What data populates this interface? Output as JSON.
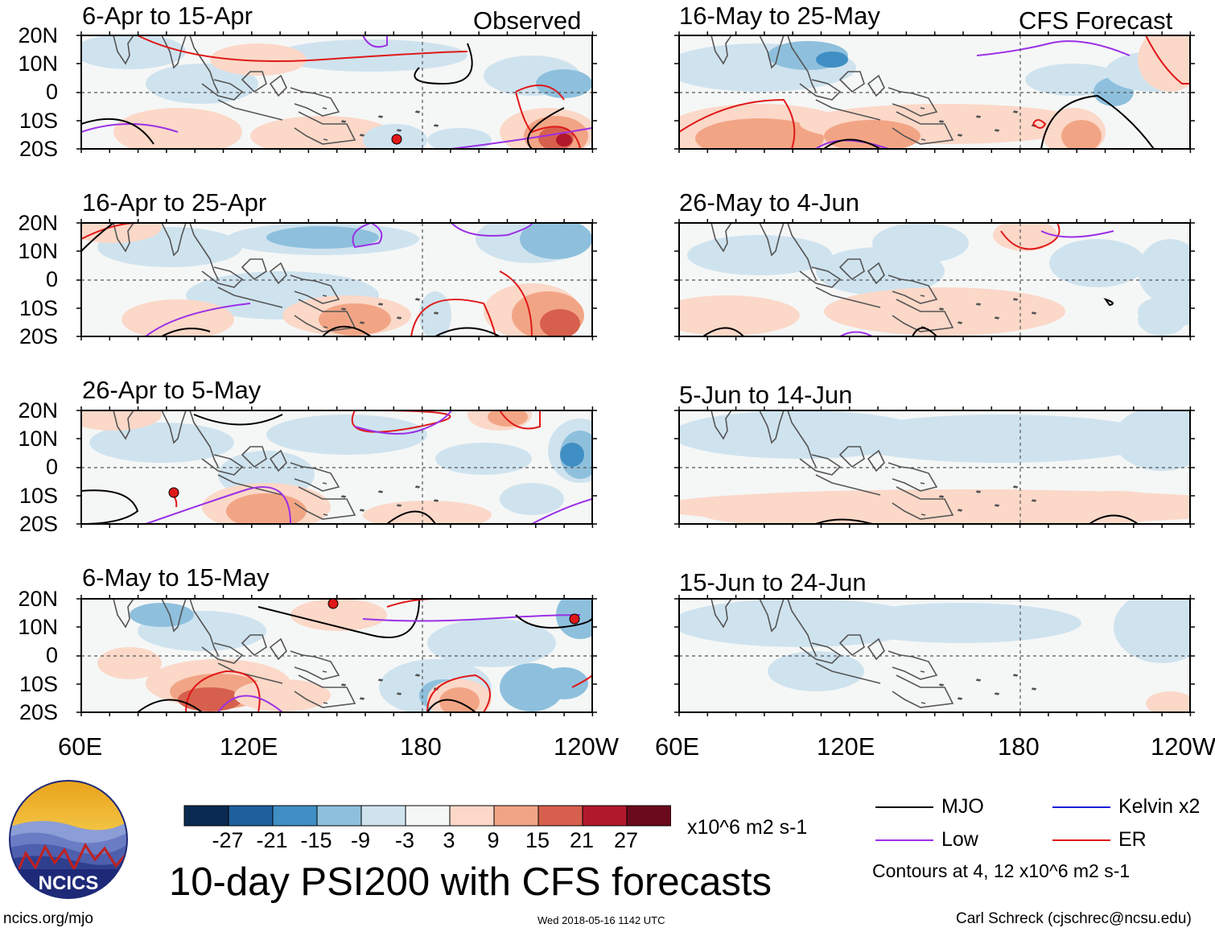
{
  "panels": {
    "observed": [
      {
        "title": "6-Apr to 15-Apr"
      },
      {
        "title": "16-Apr to 25-Apr"
      },
      {
        "title": "26-Apr to 5-May"
      },
      {
        "title": "6-May to 15-May"
      }
    ],
    "forecast": [
      {
        "title": "16-May to 25-May"
      },
      {
        "title": "26-May to 4-Jun"
      },
      {
        "title": "5-Jun to 14-Jun"
      },
      {
        "title": "15-Jun to 24-Jun"
      }
    ],
    "observed_tag": "Observed",
    "forecast_tag": "CFS Forecast"
  },
  "axes": {
    "lat_labels": [
      "20N",
      "10N",
      "0",
      "10S",
      "20S"
    ],
    "lon_labels": [
      "60E",
      "120E",
      "180",
      "120W"
    ]
  },
  "colorbar": {
    "labels": [
      "-27",
      "-21",
      "-15",
      "-9",
      "-3",
      "3",
      "9",
      "15",
      "21",
      "27"
    ],
    "colors": [
      "#0b2a52",
      "#1f5f9e",
      "#3f8fc4",
      "#8ec0dd",
      "#cfe3ef",
      "#f5f7f6",
      "#fbd8c8",
      "#f2a585",
      "#d6604d",
      "#b2182b",
      "#6b0a1c"
    ],
    "units": "x10^6 m2 s-1"
  },
  "legend": {
    "items": [
      {
        "label": "MJO",
        "color": "#000000"
      },
      {
        "label": "Low",
        "color": "#9b30e6"
      },
      {
        "label": "Kelvin x2",
        "color": "#1b1bd8"
      },
      {
        "label": "ER",
        "color": "#e01818"
      }
    ],
    "note": "Contours at 4, 12 x10^6 m2 s-1"
  },
  "title": "10-day PSI200 with CFS forecasts",
  "logo": {
    "text": "NCICS"
  },
  "footer": {
    "left": "ncics.org/mjo",
    "timestamp": "Wed 2018-05-16 1142 UTC",
    "right": "Carl Schreck (cjschrec@ncsu.edu)"
  }
}
